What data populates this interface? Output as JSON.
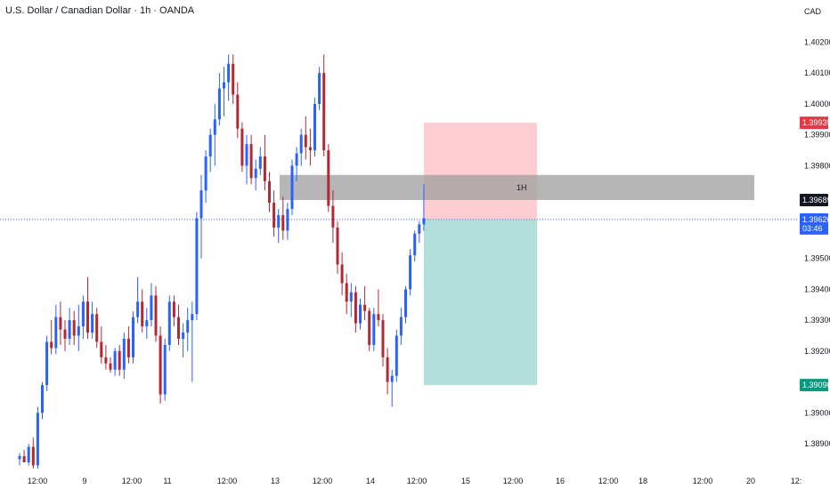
{
  "header": {
    "title": "U.S. Dollar / Canadian Dollar · 1h · OANDA"
  },
  "price_axis": {
    "currency": "CAD",
    "ticks": [
      "1.40200",
      "1.40100",
      "1.40000",
      "1.39900",
      "1.39800",
      "1.39500",
      "1.39400",
      "1.39300",
      "1.39200",
      "1.39000",
      "1.38900"
    ]
  },
  "time_axis": {
    "labels": [
      "12:00",
      "9",
      "12:00",
      "11",
      "12:00",
      "13",
      "12:00",
      "14",
      "12:00",
      "15",
      "12:00",
      "16",
      "12:00",
      "18",
      "12:00",
      "20",
      "12:"
    ]
  },
  "badges": {
    "stop": "1.39939",
    "zone": "1.39689",
    "last_price": "1.39626",
    "countdown": "03:46",
    "target": "1.39090"
  },
  "zone_label": "1H",
  "colors": {
    "up": "#2962ff",
    "down": "#b22833",
    "stop_fill": "#ffcdd2",
    "target_fill": "#b2dfdb",
    "zone_fill": "#9e9e9e",
    "last_price": "#2962ff",
    "stop_badge": "#e53945",
    "target_badge": "#089981",
    "zone_badge": "#131722"
  },
  "chart_data": {
    "type": "candlestick",
    "symbol": "USDCAD",
    "timeframe": "1h",
    "y_axis_range": [
      1.3884,
      1.4025
    ],
    "candles": [
      [
        1.3885,
        1.3887,
        1.3883,
        1.3886
      ],
      [
        1.3886,
        1.3888,
        1.3884,
        1.3884
      ],
      [
        1.3884,
        1.389,
        1.3883,
        1.3889
      ],
      [
        1.3889,
        1.3892,
        1.3882,
        1.3883
      ],
      [
        1.3883,
        1.3902,
        1.3882,
        1.39
      ],
      [
        1.39,
        1.391,
        1.3898,
        1.3909
      ],
      [
        1.3909,
        1.3925,
        1.3907,
        1.3923
      ],
      [
        1.3923,
        1.393,
        1.3919,
        1.3921
      ],
      [
        1.3921,
        1.3935,
        1.3919,
        1.3931
      ],
      [
        1.3931,
        1.3936,
        1.3922,
        1.3927
      ],
      [
        1.3927,
        1.393,
        1.392,
        1.3924
      ],
      [
        1.3924,
        1.3934,
        1.3922,
        1.393
      ],
      [
        1.393,
        1.3933,
        1.3922,
        1.3925
      ],
      [
        1.3925,
        1.3935,
        1.392,
        1.3928
      ],
      [
        1.3928,
        1.3938,
        1.3924,
        1.3936
      ],
      [
        1.3936,
        1.3944,
        1.3924,
        1.3926
      ],
      [
        1.3926,
        1.3936,
        1.3924,
        1.3932
      ],
      [
        1.3932,
        1.3934,
        1.3921,
        1.3923
      ],
      [
        1.3923,
        1.3928,
        1.3916,
        1.3918
      ],
      [
        1.3918,
        1.3922,
        1.3914,
        1.3916
      ],
      [
        1.3916,
        1.3918,
        1.3913,
        1.3914
      ],
      [
        1.3914,
        1.3921,
        1.3912,
        1.392
      ],
      [
        1.392,
        1.3922,
        1.3912,
        1.3914
      ],
      [
        1.3914,
        1.3926,
        1.3911,
        1.3924
      ],
      [
        1.3924,
        1.3928,
        1.3916,
        1.3918
      ],
      [
        1.3918,
        1.3933,
        1.3916,
        1.3931
      ],
      [
        1.3931,
        1.3944,
        1.3929,
        1.3936
      ],
      [
        1.3936,
        1.394,
        1.3926,
        1.3928
      ],
      [
        1.3928,
        1.3934,
        1.3924,
        1.393
      ],
      [
        1.393,
        1.3942,
        1.3928,
        1.3938
      ],
      [
        1.3938,
        1.3941,
        1.3923,
        1.3925
      ],
      [
        1.3925,
        1.3928,
        1.3903,
        1.3906
      ],
      [
        1.3906,
        1.3924,
        1.3904,
        1.3922
      ],
      [
        1.3922,
        1.3938,
        1.392,
        1.3936
      ],
      [
        1.3936,
        1.3938,
        1.3928,
        1.3931
      ],
      [
        1.3931,
        1.3935,
        1.3922,
        1.3924
      ],
      [
        1.3924,
        1.3929,
        1.3918,
        1.3926
      ],
      [
        1.3926,
        1.3934,
        1.392,
        1.393
      ],
      [
        1.393,
        1.3936,
        1.391,
        1.3932
      ],
      [
        1.3932,
        1.3965,
        1.393,
        1.3963
      ],
      [
        1.3963,
        1.3977,
        1.395,
        1.3972
      ],
      [
        1.3972,
        1.3985,
        1.3968,
        1.3983
      ],
      [
        1.3983,
        1.3992,
        1.3978,
        1.399
      ],
      [
        1.399,
        1.4,
        1.398,
        1.3995
      ],
      [
        1.3995,
        1.401,
        1.3993,
        1.4005
      ],
      [
        1.4005,
        1.4012,
        1.3996,
        1.4007
      ],
      [
        1.4007,
        1.4016,
        1.4001,
        1.4013
      ],
      [
        1.4013,
        1.4016,
        1.4,
        1.4003
      ],
      [
        1.4003,
        1.4007,
        1.3989,
        1.3992
      ],
      [
        1.3992,
        1.3994,
        1.3978,
        1.398
      ],
      [
        1.398,
        1.399,
        1.3974,
        1.3987
      ],
      [
        1.3987,
        1.399,
        1.3974,
        1.3976
      ],
      [
        1.3976,
        1.3982,
        1.3972,
        1.3979
      ],
      [
        1.3979,
        1.3986,
        1.3977,
        1.3983
      ],
      [
        1.3983,
        1.399,
        1.3972,
        1.3975
      ],
      [
        1.3975,
        1.3978,
        1.3965,
        1.3968
      ],
      [
        1.3968,
        1.3972,
        1.3957,
        1.396
      ],
      [
        1.396,
        1.3966,
        1.3955,
        1.3964
      ],
      [
        1.3964,
        1.397,
        1.3956,
        1.3959
      ],
      [
        1.3959,
        1.3968,
        1.3956,
        1.3966
      ],
      [
        1.3966,
        1.3982,
        1.3964,
        1.398
      ],
      [
        1.398,
        1.3986,
        1.3975,
        1.3984
      ],
      [
        1.3984,
        1.3992,
        1.398,
        1.399
      ],
      [
        1.399,
        1.3996,
        1.3982,
        1.3986
      ],
      [
        1.3986,
        1.3992,
        1.398,
        1.3985
      ],
      [
        1.3985,
        1.4002,
        1.3983,
        1.4
      ],
      [
        1.4,
        1.4012,
        1.3998,
        1.401
      ],
      [
        1.401,
        1.4016,
        1.3983,
        1.3985
      ],
      [
        1.3985,
        1.3987,
        1.3965,
        1.3967
      ],
      [
        1.3967,
        1.3972,
        1.3955,
        1.396
      ],
      [
        1.396,
        1.3962,
        1.3945,
        1.3948
      ],
      [
        1.3948,
        1.3952,
        1.3938,
        1.3942
      ],
      [
        1.3942,
        1.3945,
        1.3932,
        1.3936
      ],
      [
        1.3936,
        1.3942,
        1.3931,
        1.3939
      ],
      [
        1.3939,
        1.3941,
        1.3926,
        1.3929
      ],
      [
        1.3929,
        1.3937,
        1.3927,
        1.3935
      ],
      [
        1.3935,
        1.3941,
        1.393,
        1.3933
      ],
      [
        1.3933,
        1.3934,
        1.392,
        1.3922
      ],
      [
        1.3922,
        1.3934,
        1.392,
        1.3932
      ],
      [
        1.3932,
        1.394,
        1.3928,
        1.393
      ],
      [
        1.393,
        1.3932,
        1.3915,
        1.3918
      ],
      [
        1.3918,
        1.3921,
        1.3906,
        1.391
      ],
      [
        1.391,
        1.3914,
        1.3902,
        1.3912
      ],
      [
        1.3912,
        1.3927,
        1.391,
        1.3925
      ],
      [
        1.3925,
        1.3934,
        1.3922,
        1.3931
      ],
      [
        1.3931,
        1.3941,
        1.3929,
        1.394
      ],
      [
        1.394,
        1.3953,
        1.3938,
        1.3951
      ],
      [
        1.3951,
        1.3959,
        1.3949,
        1.3958
      ],
      [
        1.3958,
        1.3962,
        1.3955,
        1.3961
      ],
      [
        1.3961,
        1.3974,
        1.3959,
        1.3963
      ]
    ],
    "current_price": 1.39626,
    "position": {
      "type": "short",
      "entry": 1.39626,
      "stop": 1.39939,
      "target": 1.3909
    },
    "zone": {
      "top": 1.3977,
      "bottom": 1.39689,
      "label": "1H"
    }
  }
}
